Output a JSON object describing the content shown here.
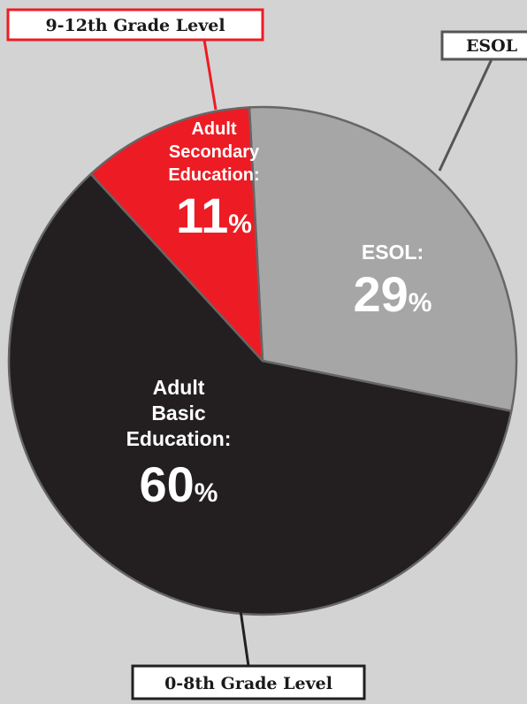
{
  "chart_data": {
    "type": "pie",
    "slices": [
      {
        "label_lines": [
          "ESOL:"
        ],
        "value": 29,
        "percent_suffix": "%",
        "color": "#a6a6a6"
      },
      {
        "label_lines": [
          "Adult",
          "Basic",
          "Education:"
        ],
        "value": 60,
        "percent_suffix": "%",
        "color": "#231f20"
      },
      {
        "label_lines": [
          "Adult",
          "Secondary",
          "Education:"
        ],
        "value": 11,
        "percent_suffix": "%",
        "color": "#ed1c24"
      }
    ],
    "callouts": [
      {
        "text": "ESOL",
        "border_color": "#555555"
      },
      {
        "text": "9-12th Grade Level",
        "border_color": "#ed1c24"
      },
      {
        "text": "0-8th Grade Level",
        "border_color": "#231f20"
      }
    ],
    "colors": {
      "background": "#d3d3d3",
      "slice_stroke": "#666666"
    }
  }
}
